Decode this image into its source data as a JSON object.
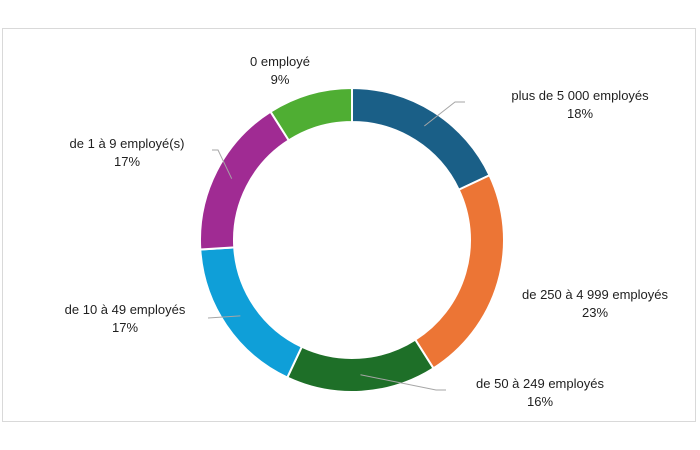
{
  "chart_data": {
    "type": "pie",
    "subtype": "doughnut",
    "title": "",
    "legend": "none",
    "slices": [
      {
        "label": "plus de 5 000 employés",
        "value": 18,
        "pct_label": "18%",
        "color": "#1a5f87"
      },
      {
        "label": "de 250 à 4 999 employés",
        "value": 23,
        "pct_label": "23%",
        "color": "#ec7535"
      },
      {
        "label": "de 50 à 249 employés",
        "value": 16,
        "pct_label": "16%",
        "color": "#1e6f28"
      },
      {
        "label": "de 10 à 49 employés",
        "value": 17,
        "pct_label": "17%",
        "color": "#0f9fd8"
      },
      {
        "label": "de 1 à 9 employé(s)",
        "value": 17,
        "pct_label": "17%",
        "color": "#a02b93"
      },
      {
        "label": "0 employé",
        "value": 9,
        "pct_label": "9%",
        "color": "#4fae33"
      }
    ]
  }
}
